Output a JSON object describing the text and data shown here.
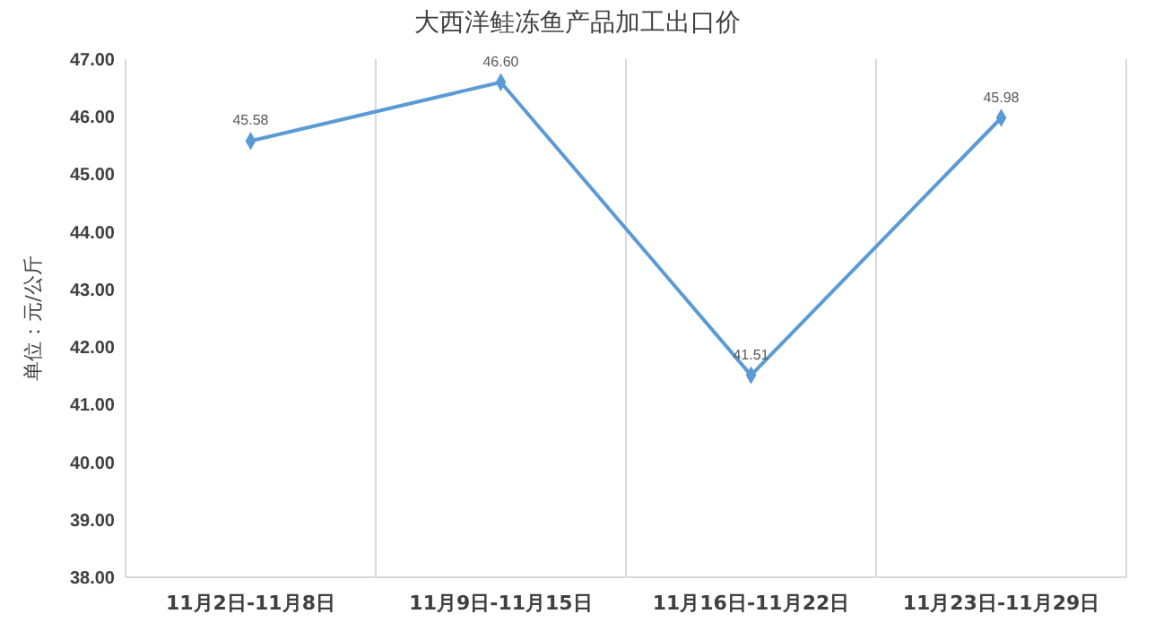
{
  "chart_data": {
    "type": "line",
    "title": "大西洋鲑冻鱼产品加工出口价",
    "ylabel": "单位：元/公斤",
    "categories": [
      "11月2日-11月8日",
      "11月9日-11月15日",
      "11月16日-11月22日",
      "11月23日-11月29日"
    ],
    "series": [
      {
        "color": "#5b9bd5",
        "values": [
          45.58,
          46.6,
          41.51,
          45.98
        ],
        "value_labels": [
          "45.58",
          "46.60",
          "41.51",
          "45.98"
        ]
      }
    ],
    "ylim": [
      38,
      47
    ],
    "yticks": [
      {
        "value": 38,
        "label": "38.00"
      },
      {
        "value": 39,
        "label": "39.00"
      },
      {
        "value": 40,
        "label": "40.00"
      },
      {
        "value": 41,
        "label": "41.00"
      },
      {
        "value": 42,
        "label": "42.00"
      },
      {
        "value": 43,
        "label": "43.00"
      },
      {
        "value": 44,
        "label": "44.00"
      },
      {
        "value": 45,
        "label": "45.00"
      },
      {
        "value": 46,
        "label": "46.00"
      },
      {
        "value": 47,
        "label": "47.00"
      }
    ],
    "grid": "x",
    "marker": "diamond",
    "line_style": "solid"
  }
}
